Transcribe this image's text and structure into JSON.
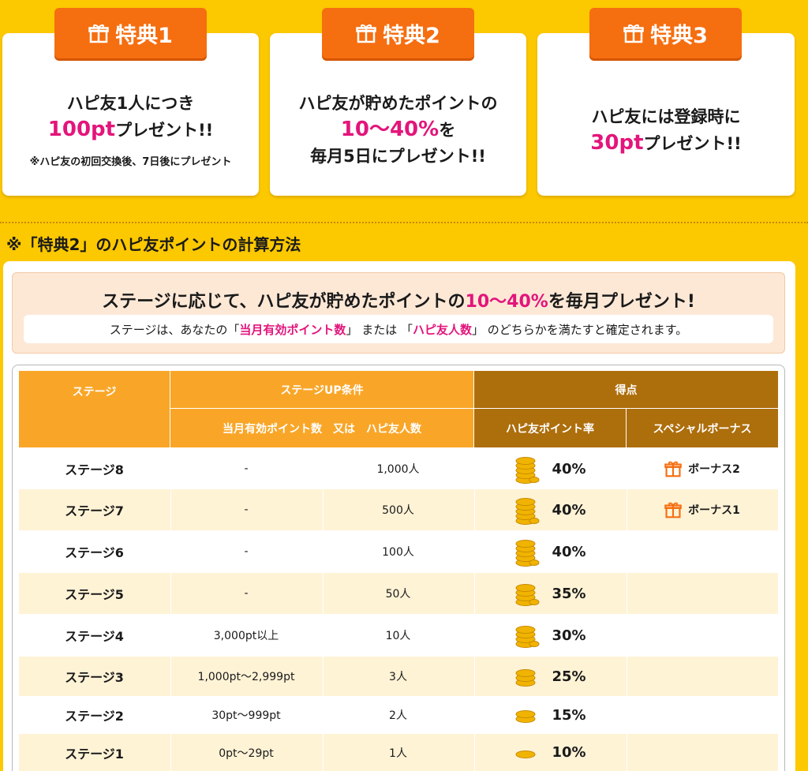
{
  "benefits": [
    {
      "tab_label": "特典1",
      "line1": "ハピ友1人につき",
      "highlight": "100pt",
      "line2_suffix": "プレゼント!!",
      "note": "※ハピ友の初回交換後、7日後にプレゼント"
    },
    {
      "tab_label": "特典2",
      "line1": "ハピ友が貯めたポイントの",
      "highlight": "10〜40%",
      "line2_suffix": "を",
      "line3": "毎月5日にプレゼント!!"
    },
    {
      "tab_label": "特典3",
      "line1": "ハピ友には登録時に",
      "highlight": "30pt",
      "line2_suffix": "プレゼント!!"
    }
  ],
  "section_title": "※「特典2」のハピ友ポイントの計算方法",
  "intro": {
    "head_before": "ステージに応じて、ハピ友が貯めたポイントの",
    "head_highlight": "10〜40%",
    "head_after": "を毎月プレゼント!",
    "sub_before": "ステージは、あなたの「",
    "sub_hl1": "当月有効ポイント数",
    "sub_mid": "」 または 「",
    "sub_hl2": "ハピ友人数",
    "sub_after": "」 のどちらかを満たすと確定されます。"
  },
  "table": {
    "headers": {
      "stage": "ステージ",
      "condition": "ステージUP条件",
      "condition_sub": "当月有効ポイント数　又は　ハピ友人数",
      "score": "得点",
      "rate": "ハピ友ポイント率",
      "bonus": "スペシャルボーナス"
    },
    "rows": [
      {
        "stage": "ステージ8",
        "points": "-",
        "friends": "1,000人",
        "rate": "40%",
        "coins": 5,
        "bonus": "ボーナス2"
      },
      {
        "stage": "ステージ7",
        "points": "-",
        "friends": "500人",
        "rate": "40%",
        "coins": 5,
        "bonus": "ボーナス1"
      },
      {
        "stage": "ステージ6",
        "points": "-",
        "friends": "100人",
        "rate": "40%",
        "coins": 5,
        "bonus": ""
      },
      {
        "stage": "ステージ5",
        "points": "-",
        "friends": "50人",
        "rate": "35%",
        "coins": 4,
        "bonus": ""
      },
      {
        "stage": "ステージ4",
        "points": "3,000pt以上",
        "friends": "10人",
        "rate": "30%",
        "coins": 4,
        "bonus": ""
      },
      {
        "stage": "ステージ3",
        "points": "1,000pt〜2,999pt",
        "friends": "3人",
        "rate": "25%",
        "coins": 3,
        "bonus": ""
      },
      {
        "stage": "ステージ2",
        "points": "30pt〜999pt",
        "friends": "2人",
        "rate": "15%",
        "coins": 2,
        "bonus": ""
      },
      {
        "stage": "ステージ1",
        "points": "0pt〜29pt",
        "friends": "1人",
        "rate": "10%",
        "coins": 1,
        "bonus": ""
      }
    ]
  },
  "icons": {
    "gift": "gift-icon",
    "coins": "coin-stack-icon"
  },
  "colors": {
    "background": "#fcc800",
    "accent_orange": "#f56e10",
    "highlight_pink": "#e3157b",
    "header_orange": "#f9a628",
    "header_brown": "#ad6e0c"
  }
}
